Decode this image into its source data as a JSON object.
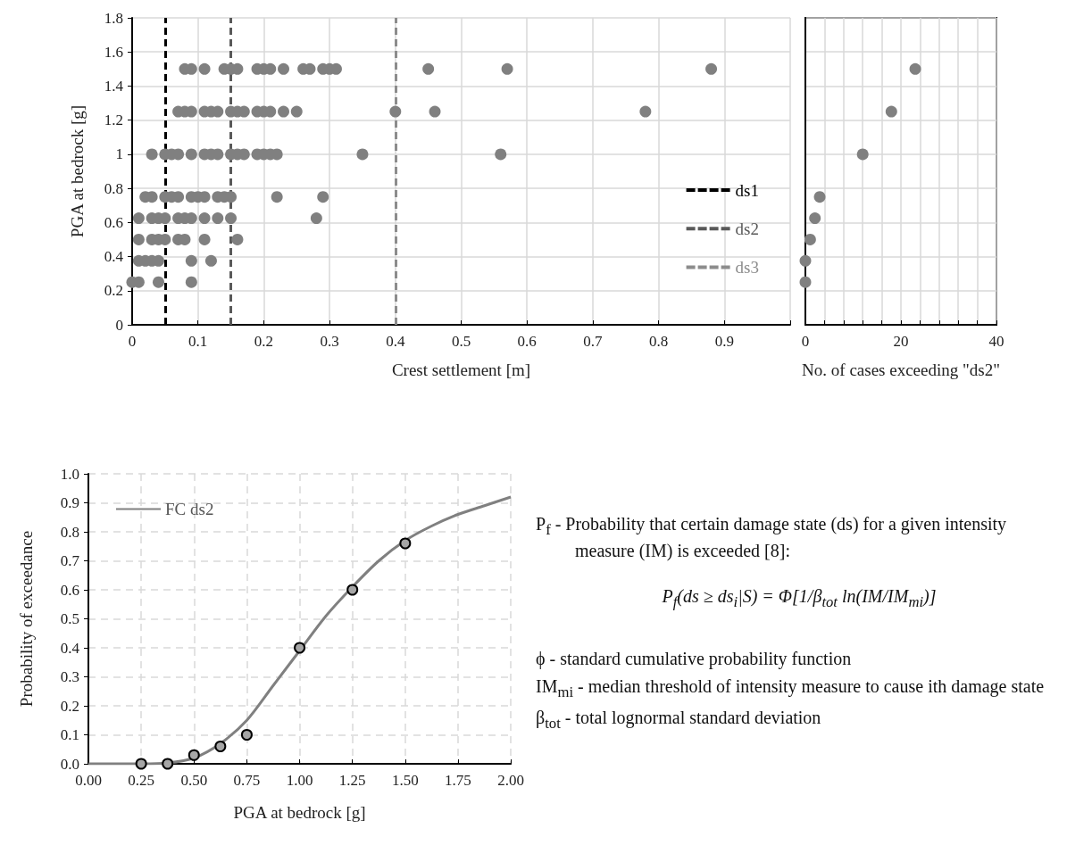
{
  "chart_data": [
    {
      "type": "scatter",
      "xlabel": "Crest settlement [m]",
      "ylabel": "PGA at bedrock [g]",
      "xlim": [
        0,
        1
      ],
      "xticks": [
        0,
        0.1,
        0.2,
        0.3,
        0.4,
        0.5,
        0.6,
        0.7,
        0.8,
        0.9,
        {
          "value": 1,
          "label": null
        }
      ],
      "ylim": [
        0,
        1.8
      ],
      "yticks": [
        0,
        0.2,
        0.4,
        0.6,
        0.8,
        1,
        1.2,
        1.4,
        1.6,
        1.8
      ],
      "grid": true,
      "marker": "circle",
      "legend": "bottom right",
      "series": [
        {
          "color": "#808080",
          "x": [
            0.08,
            0.09,
            0.11,
            0.14,
            0.15,
            0.16,
            0.19,
            0.2,
            0.21,
            0.23,
            0.26,
            0.27,
            0.29,
            0.3,
            0.31,
            0.45,
            0.57,
            0.88
          ],
          "values": [
            1.5,
            1.5,
            1.5,
            1.5,
            1.5,
            1.5,
            1.5,
            1.5,
            1.5,
            1.5,
            1.5,
            1.5,
            1.5,
            1.5,
            1.5,
            1.5,
            1.5,
            1.5
          ]
        },
        {
          "color": "#808080",
          "x": [
            0.07,
            0.08,
            0.09,
            0.11,
            0.12,
            0.13,
            0.15,
            0.16,
            0.17,
            0.19,
            0.2,
            0.21,
            0.23,
            0.25,
            0.4,
            0.46,
            0.78
          ],
          "values": [
            1.25,
            1.25,
            1.25,
            1.25,
            1.25,
            1.25,
            1.25,
            1.25,
            1.25,
            1.25,
            1.25,
            1.25,
            1.25,
            1.25,
            1.25,
            1.25,
            1.25
          ]
        },
        {
          "color": "#808080",
          "x": [
            0.03,
            0.05,
            0.06,
            0.07,
            0.09,
            0.11,
            0.12,
            0.13,
            0.15,
            0.16,
            0.17,
            0.19,
            0.2,
            0.21,
            0.22,
            0.35,
            0.56
          ],
          "values": [
            1,
            1,
            1,
            1,
            1,
            1,
            1,
            1,
            1,
            1,
            1,
            1,
            1,
            1,
            1,
            1,
            1
          ]
        },
        {
          "color": "#808080",
          "x": [
            0.02,
            0.03,
            0.05,
            0.06,
            0.07,
            0.09,
            0.1,
            0.11,
            0.13,
            0.14,
            0.15,
            0.22,
            0.29
          ],
          "values": [
            0.75,
            0.75,
            0.75,
            0.75,
            0.75,
            0.75,
            0.75,
            0.75,
            0.75,
            0.75,
            0.75,
            0.75,
            0.75
          ]
        },
        {
          "color": "#808080",
          "x": [
            0.01,
            0.03,
            0.04,
            0.05,
            0.07,
            0.08,
            0.09,
            0.11,
            0.13,
            0.15,
            0.28
          ],
          "values": [
            0.625,
            0.625,
            0.625,
            0.625,
            0.625,
            0.625,
            0.625,
            0.625,
            0.625,
            0.625,
            0.625
          ]
        },
        {
          "color": "#808080",
          "x": [
            0.01,
            0.03,
            0.04,
            0.05,
            0.07,
            0.08,
            0.11,
            0.16
          ],
          "values": [
            0.5,
            0.5,
            0.5,
            0.5,
            0.5,
            0.5,
            0.5,
            0.5
          ]
        },
        {
          "color": "#808080",
          "x": [
            0.01,
            0.02,
            0.03,
            0.04,
            0.09,
            0.12
          ],
          "values": [
            0.375,
            0.375,
            0.375,
            0.375,
            0.375,
            0.375
          ]
        },
        {
          "color": "#808080",
          "x": [
            0,
            0.01,
            0.04,
            0.09
          ],
          "values": [
            0.25,
            0.25,
            0.25,
            0.25
          ]
        }
      ],
      "ref_lines": [
        {
          "axis": "x",
          "value": 0.05,
          "label": "ds1",
          "color": "#000000",
          "line_style": "dashed"
        },
        {
          "axis": "x",
          "value": 0.15,
          "label": "ds2",
          "color": "#595959",
          "line_style": "dashed"
        },
        {
          "axis": "x",
          "value": 0.4,
          "label": "ds3",
          "color": "#8c8c8c",
          "line_style": "dashed"
        }
      ]
    },
    {
      "type": "scatter",
      "xlabel": "No. of cases exceeding \"ds2\"",
      "xlim": [
        0,
        40
      ],
      "xticks": [
        0,
        {
          "value": 4,
          "label": null
        },
        {
          "value": 8,
          "label": null
        },
        {
          "value": 12,
          "label": null
        },
        {
          "value": 16,
          "label": null
        },
        20,
        {
          "value": 24,
          "label": null
        },
        {
          "value": 28,
          "label": null
        },
        {
          "value": 32,
          "label": null
        },
        {
          "value": 36,
          "label": null
        },
        40
      ],
      "ylim": [
        0,
        1.8
      ],
      "yticks": [
        0,
        0.2,
        0.4,
        0.6,
        0.8,
        1,
        1.2,
        1.4,
        1.6,
        1.8
      ],
      "tick_labels": "x",
      "grid": true,
      "marker": "circle",
      "series": [
        {
          "color": "#808080",
          "x": [
            0,
            0,
            1,
            2,
            3,
            12,
            18,
            23
          ],
          "values": [
            0.25,
            0.375,
            0.5,
            0.625,
            0.75,
            1,
            1.25,
            1.5
          ]
        }
      ]
    },
    {
      "type": "line",
      "xlabel": "PGA at bedrock [g]",
      "ylabel": "Probability of exceedance",
      "xlim": [
        0,
        2
      ],
      "xticks": [
        {
          "value": 0,
          "label": "0.00"
        },
        {
          "value": 0.25,
          "label": "0.25"
        },
        {
          "value": 0.5,
          "label": "0.50"
        },
        {
          "value": 0.75,
          "label": "0.75"
        },
        {
          "value": 1,
          "label": "1.00"
        },
        {
          "value": 1.25,
          "label": "1.25"
        },
        {
          "value": 1.5,
          "label": "1.50"
        },
        {
          "value": 1.75,
          "label": "1.75"
        },
        {
          "value": 2,
          "label": "2.00"
        }
      ],
      "ylim": [
        0,
        1
      ],
      "yticks": [
        {
          "value": 0,
          "label": "0.0"
        },
        {
          "value": 0.1,
          "label": "0.1"
        },
        {
          "value": 0.2,
          "label": "0.2"
        },
        {
          "value": 0.3,
          "label": "0.3"
        },
        {
          "value": 0.4,
          "label": "0.4"
        },
        {
          "value": 0.5,
          "label": "0.5"
        },
        {
          "value": 0.6,
          "label": "0.6"
        },
        {
          "value": 0.7,
          "label": "0.7"
        },
        {
          "value": 0.8,
          "label": "0.8"
        },
        {
          "value": 0.9,
          "label": "0.9"
        },
        {
          "value": 1,
          "label": "1.0"
        }
      ],
      "grid": true,
      "legend": "top left",
      "series": [
        {
          "name": "FC ds2",
          "type": "line",
          "color": "#808080",
          "marker": "none",
          "x": [
            0,
            0.125,
            0.25,
            0.375,
            0.5,
            0.625,
            0.75,
            0.875,
            1,
            1.125,
            1.25,
            1.375,
            1.5,
            1.625,
            1.75,
            1.875,
            2
          ],
          "values": [
            0,
            0,
            0,
            0.003,
            0.02,
            0.07,
            0.15,
            0.27,
            0.39,
            0.51,
            0.61,
            0.7,
            0.77,
            0.82,
            0.86,
            0.89,
            0.92
          ]
        },
        {
          "type": "scatter",
          "color": "#a6a6a6",
          "marker": "circle",
          "x": [
            0.25,
            0.375,
            0.5,
            0.625,
            0.75,
            1,
            1.25,
            1.5
          ],
          "values": [
            0,
            0,
            0.03,
            0.06,
            0.1,
            0.4,
            0.6,
            0.76
          ]
        }
      ]
    },
    {
      "type": "other",
      "annotations": [
        "P$_{f}$ - Probability that certain damage state (ds) for a given intensity measure (IM) is exceeded [8]:",
        "P$_{f}$(ds ≥ ds$_{i}$|S) = Φ[1/β$_{tot}$ ln(IM/IM$_{mi}$)]",
        "ϕ - standard cumulative probability function",
        "IM$_{mi}$ - median threshold of intensity measure to cause ith damage state",
        "β$_{tot}$ - total lognormal standard deviation"
      ]
    }
  ]
}
